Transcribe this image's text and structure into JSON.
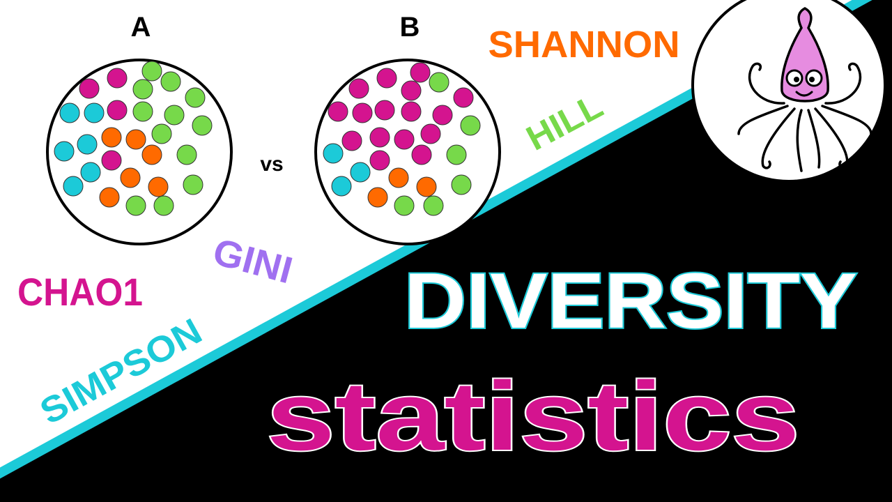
{
  "labels": {
    "a": "A",
    "b": "B",
    "vs": "vs"
  },
  "keywords": {
    "shannon": "SHANNON",
    "hill": "HILL",
    "gini": "GINI",
    "chao1": "CHAO1",
    "simpson": "SIMPSON"
  },
  "title": {
    "main": "DIVERSITY",
    "sub": "statistics"
  }
}
